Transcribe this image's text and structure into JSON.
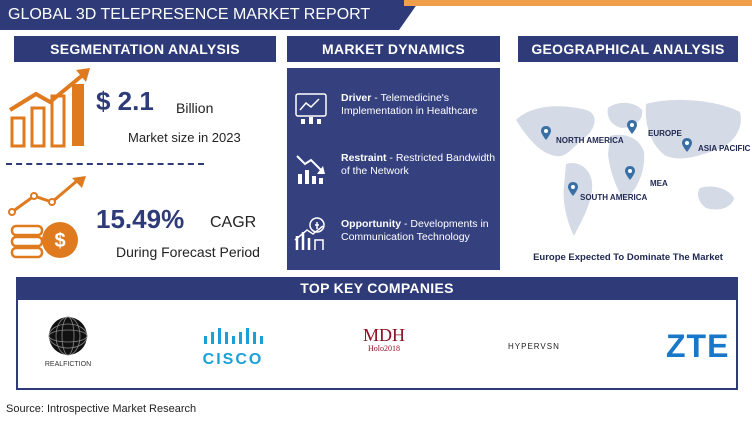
{
  "header": {
    "title": "GLOBAL 3D TELEPRESENCE MARKET REPORT"
  },
  "sections": {
    "segmentation": "SEGMENTATION ANALYSIS",
    "dynamics": "MARKET DYNAMICS",
    "geography": "GEOGRAPHICAL ANALYSIS",
    "companies": "TOP KEY COMPANIES"
  },
  "market_size": {
    "value": "$ 2.1",
    "unit": "Billion",
    "label": "Market size in 2023"
  },
  "cagr": {
    "value": "15.49%",
    "unit": "CAGR",
    "label": "During Forecast Period"
  },
  "dynamics": [
    {
      "title": "Driver",
      "text": " - Telemedicine's Implementation in Healthcare",
      "icon": "chart-screen-icon"
    },
    {
      "title": "Restraint",
      "text": " - Restricted Bandwidth of the Network",
      "icon": "declining-chart-icon"
    },
    {
      "title": "Opportunity",
      "text": " - Developments in Communication Technology",
      "icon": "growth-bulb-icon"
    }
  ],
  "geography": {
    "regions": [
      "NORTH AMERICA",
      "EUROPE",
      "ASIA PACIFIC",
      "MEA",
      "SOUTH AMERICA"
    ],
    "footer": "Europe Expected To Dominate The Market"
  },
  "companies": [
    {
      "name": "REALFICTION"
    },
    {
      "name": "CISCO"
    },
    {
      "name": "MDH",
      "sub": "Holo2018"
    },
    {
      "name": "HYPERVSN"
    },
    {
      "name": "ZTE"
    }
  ],
  "source": "Source: Introspective Market Research",
  "colors": {
    "navy": "#2e3b78",
    "orange": "#e07a1e",
    "accent": "#f0a04b",
    "cisco": "#1ba0d7",
    "zte": "#1877c9"
  }
}
